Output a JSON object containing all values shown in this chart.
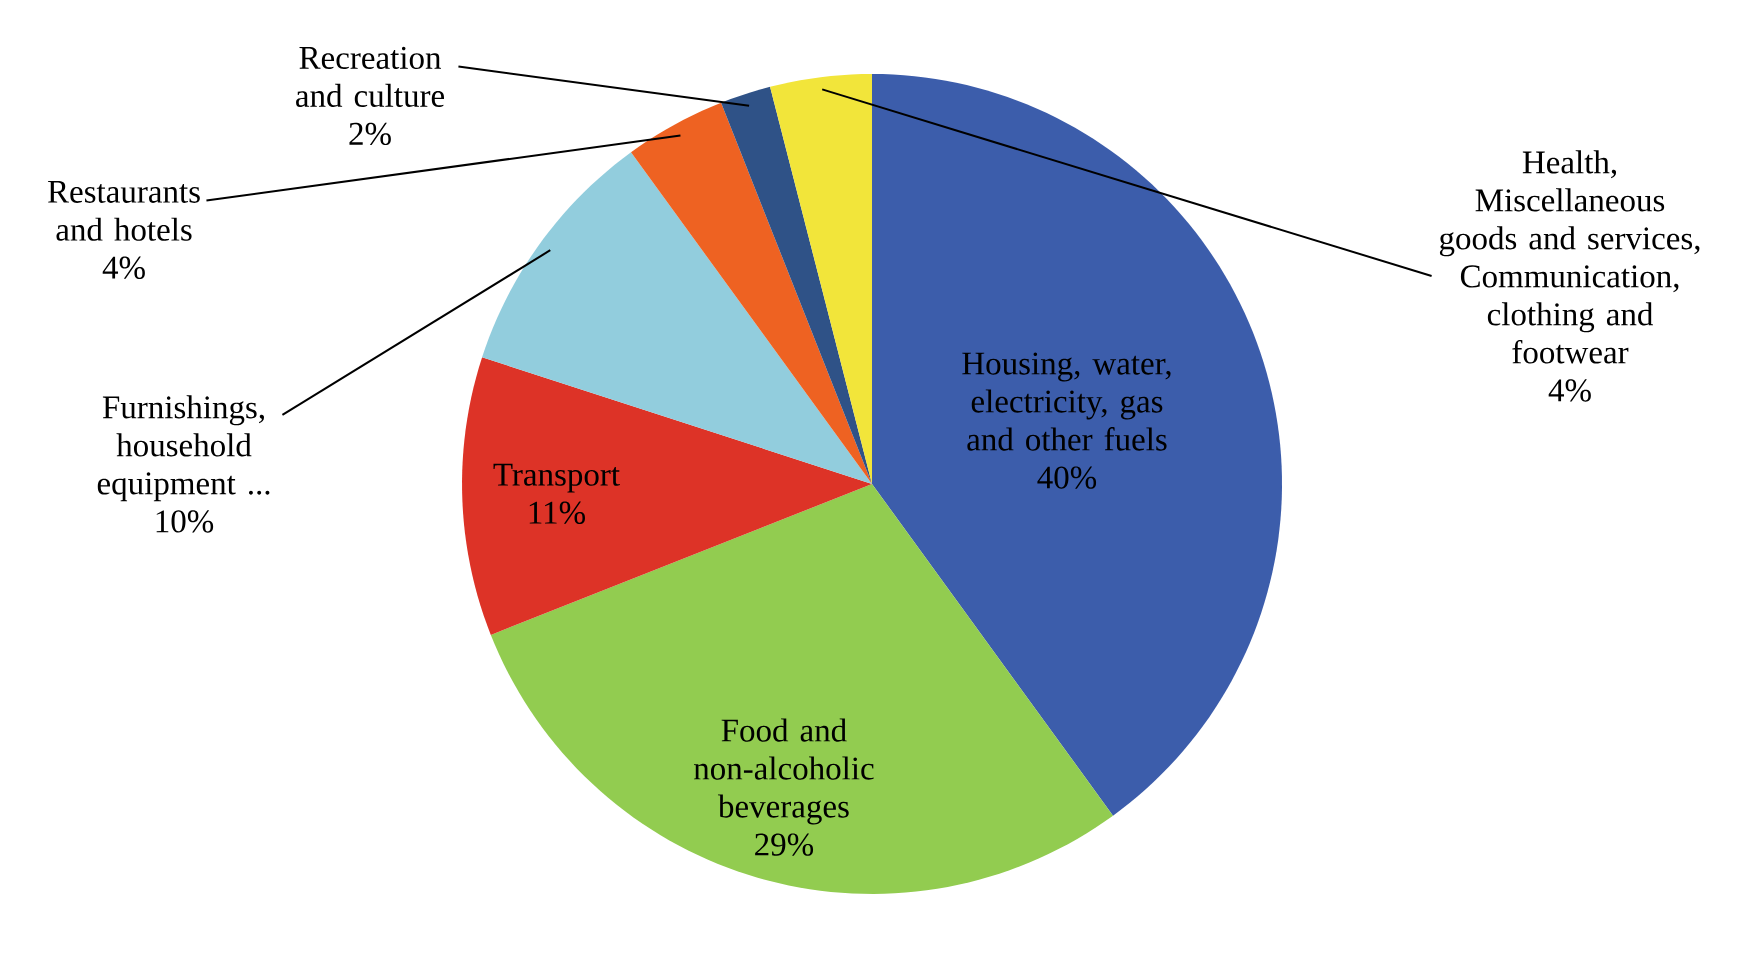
{
  "chart_data": {
    "type": "pie",
    "categories": [
      "Housing, water, electricity, gas and other fuels",
      "Food and non-alcoholic beverages",
      "Transport",
      "Furnishings, household equipment ...",
      "Restaurants and hotels",
      "Recreation and culture",
      "Health, Miscellaneous goods and services, Communication, clothing and footwear"
    ],
    "values": [
      40,
      29,
      11,
      10,
      4,
      2,
      4
    ],
    "colors": [
      "#3c5dab",
      "#92cc50",
      "#dd3327",
      "#92cddd",
      "#ee6222",
      "#2f5287",
      "#f2e53a"
    ],
    "value_labels": [
      "40%",
      "29%",
      "11%",
      "10%",
      "4%",
      "2%",
      "4%"
    ]
  }
}
